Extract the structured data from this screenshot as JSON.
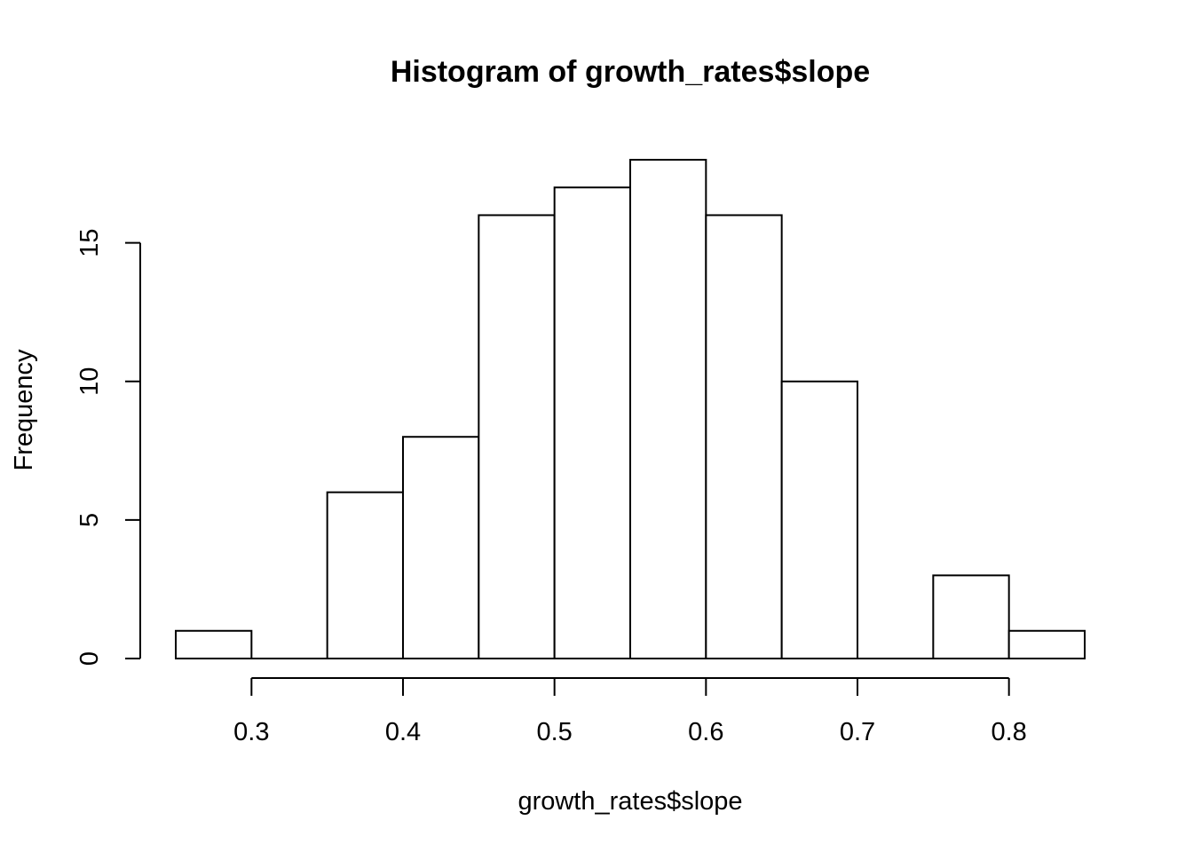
{
  "chart_data": {
    "type": "bar",
    "title": "Histogram of growth_rates$slope",
    "xlabel": "growth_rates$slope",
    "ylabel": "Frequency",
    "bins": [
      {
        "start": 0.25,
        "end": 0.3,
        "count": 1
      },
      {
        "start": 0.3,
        "end": 0.35,
        "count": 0
      },
      {
        "start": 0.35,
        "end": 0.4,
        "count": 6
      },
      {
        "start": 0.4,
        "end": 0.45,
        "count": 8
      },
      {
        "start": 0.45,
        "end": 0.5,
        "count": 16
      },
      {
        "start": 0.5,
        "end": 0.55,
        "count": 17
      },
      {
        "start": 0.55,
        "end": 0.6,
        "count": 18
      },
      {
        "start": 0.6,
        "end": 0.65,
        "count": 16
      },
      {
        "start": 0.65,
        "end": 0.7,
        "count": 10
      },
      {
        "start": 0.7,
        "end": 0.75,
        "count": 0
      },
      {
        "start": 0.75,
        "end": 0.8,
        "count": 3
      },
      {
        "start": 0.8,
        "end": 0.85,
        "count": 1
      }
    ],
    "xlim": [
      0.25,
      0.85
    ],
    "ylim": [
      0,
      18
    ],
    "x_ticks": [
      0.3,
      0.4,
      0.5,
      0.6,
      0.7,
      0.8
    ],
    "x_tick_labels": [
      "0.3",
      "0.4",
      "0.5",
      "0.6",
      "0.7",
      "0.8"
    ],
    "y_ticks": [
      0,
      5,
      10,
      15
    ],
    "y_tick_labels": [
      "0",
      "5",
      "10",
      "15"
    ],
    "grid": false,
    "legend": "none",
    "bar_fill": "#ffffff",
    "bar_stroke": "#000000"
  }
}
